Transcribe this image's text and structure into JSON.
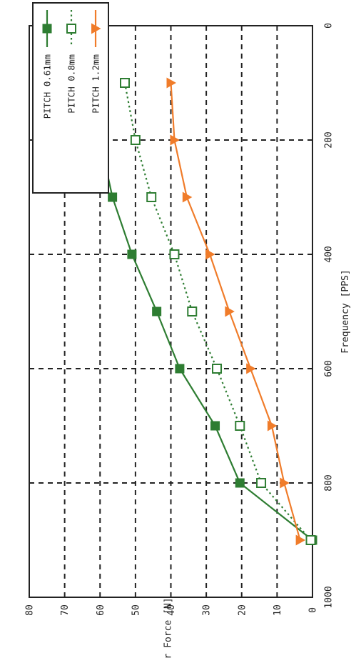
{
  "chart_data": {
    "type": "line",
    "orientation": "rotated 90deg clockwise (x axis runs top to bottom, y axis runs right to left)",
    "xlabel": "Frequency [PPS]",
    "ylabel": "Linear Force [N]",
    "xlim": [
      0,
      1000
    ],
    "ylim": [
      0,
      80
    ],
    "x_ticks": [
      0,
      200,
      400,
      600,
      800,
      1000
    ],
    "y_ticks": [
      0,
      10,
      20,
      30,
      40,
      50,
      60,
      70,
      80
    ],
    "x_tick_labels": [
      "0",
      "200",
      "400",
      "600",
      "800",
      "1000"
    ],
    "y_tick_labels": [
      "0",
      "10",
      "20",
      "30",
      "40",
      "50",
      "60",
      "70",
      "80"
    ],
    "grid": true,
    "grid_style": "dashed",
    "legend_position": "top-right",
    "series": [
      {
        "name": "PITCH 0.61mm",
        "color": "#2e7d32",
        "line_style": "solid",
        "marker": "filled-square",
        "x": [
          100,
          200,
          300,
          400,
          500,
          600,
          700,
          800,
          900
        ],
        "y": [
          63.5,
          60,
          56.5,
          51,
          44,
          37.5,
          27.5,
          20.5,
          0
        ]
      },
      {
        "name": "PITCH 0.8mm",
        "color": "#2e7d32",
        "line_style": "dotted",
        "marker": "open-square",
        "x": [
          100,
          200,
          300,
          400,
          500,
          600,
          700,
          800,
          900
        ],
        "y": [
          53,
          50,
          45.5,
          39,
          34,
          27,
          20.5,
          14.5,
          0.5
        ]
      },
      {
        "name": "PITCH 1.2mm",
        "color": "#f07c2a",
        "line_style": "solid",
        "marker": "filled-triangle",
        "x": [
          100,
          200,
          300,
          400,
          500,
          600,
          700,
          800,
          900
        ],
        "y": [
          40,
          39,
          35.5,
          29,
          23.5,
          17.5,
          11.5,
          8,
          3.5
        ]
      }
    ]
  }
}
